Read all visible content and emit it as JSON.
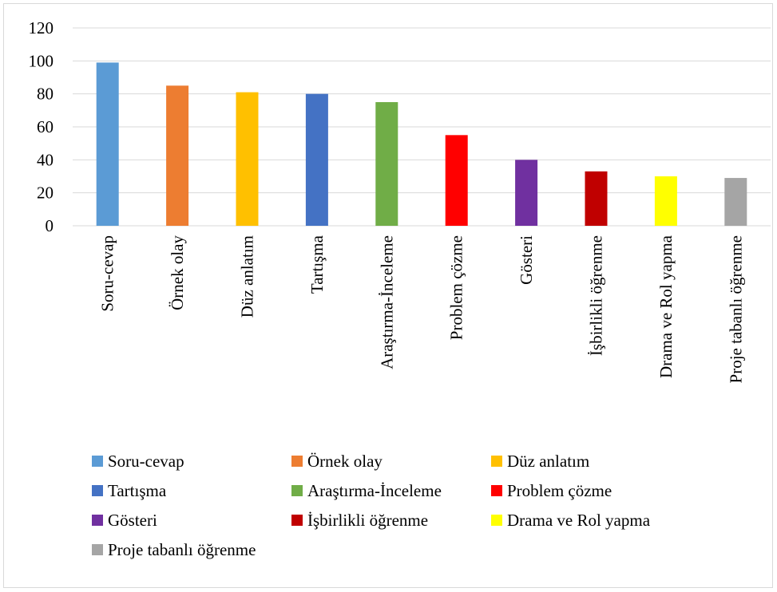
{
  "chart_data": {
    "type": "bar",
    "title": "",
    "xlabel": "",
    "ylabel": "",
    "ylim": [
      0,
      120
    ],
    "yticks": [
      0,
      20,
      40,
      60,
      80,
      100,
      120
    ],
    "grid": true,
    "legend_position": "bottom",
    "categories": [
      "Soru-cevap",
      "Örnek olay",
      "Düz anlatım",
      "Tartışma",
      "Araştırma-İnceleme",
      "Problem çözme",
      "Gösteri",
      "İşbirlikli öğrenme",
      "Drama ve Rol yapma",
      "Proje tabanlı öğrenme"
    ],
    "values": [
      99,
      85,
      81,
      80,
      75,
      55,
      40,
      33,
      30,
      29
    ],
    "colors": [
      "#5b9bd5",
      "#ed7d31",
      "#ffc000",
      "#4472c4",
      "#70ad47",
      "#ff0000",
      "#7030a0",
      "#c00000",
      "#ffff00",
      "#a5a5a5"
    ],
    "gridline_color": "#d9d9d9"
  }
}
